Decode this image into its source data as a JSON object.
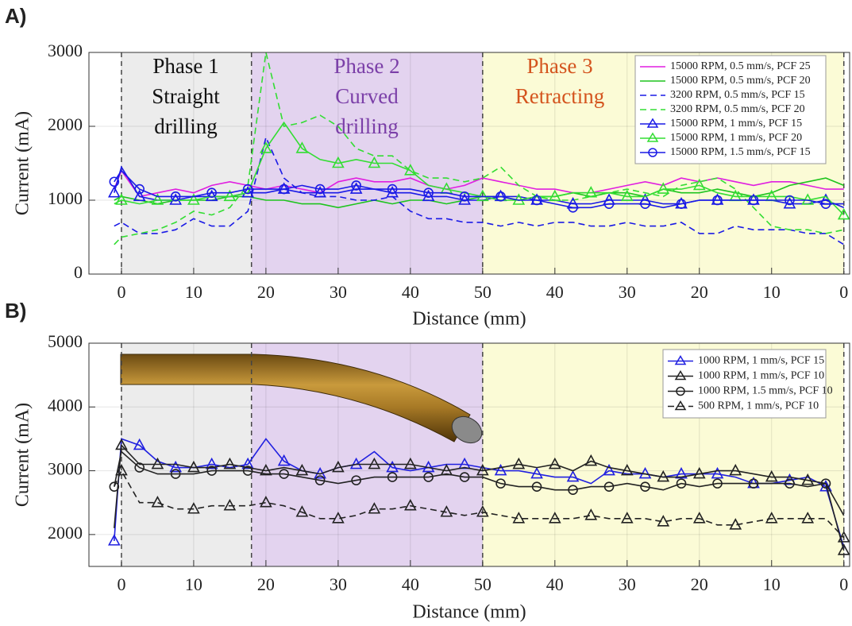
{
  "chart_data": [
    {
      "type": "line",
      "panel_label": "A)",
      "xlabel": "Distance (mm)",
      "ylabel": "Current (mA)",
      "xlim": [
        -4.5,
        100.8
      ],
      "ylim": [
        0,
        3000
      ],
      "xticks": [
        0,
        10,
        20,
        30,
        40,
        50,
        {
          "value": 60,
          "label": "40"
        },
        {
          "value": 70,
          "label": "30"
        },
        {
          "value": 80,
          "label": "20"
        },
        {
          "value": 90,
          "label": "10"
        },
        {
          "value": 100,
          "label": "0"
        }
      ],
      "yticks": [
        0,
        1000,
        2000,
        3000
      ],
      "grid": true,
      "legend": "upper right",
      "vlines": [
        0,
        18,
        50,
        100
      ],
      "regions": [
        {
          "start": 0,
          "end": 18,
          "color": "#ececec",
          "label": [
            "Phase 1",
            "Straight",
            "drilling"
          ],
          "label_color": "#111111"
        },
        {
          "start": 18,
          "end": 50,
          "color": "#e3d3ef",
          "label": [
            "Phase 2",
            "Curved",
            "drilling"
          ],
          "label_color": "#7b3fa8"
        },
        {
          "start": 50,
          "end": 100,
          "color": "#fbfbd6",
          "label": [
            "Phase 3",
            "Retracting"
          ],
          "label_color": "#d4541e"
        }
      ],
      "x": [
        -1,
        0,
        2.5,
        5,
        7.5,
        10,
        12.5,
        15,
        17.5,
        20,
        22.5,
        25,
        27.5,
        30,
        32.5,
        35,
        37.5,
        40,
        42.5,
        45,
        47.5,
        50,
        52.5,
        55,
        57.5,
        60,
        62.5,
        65,
        67.5,
        70,
        72.5,
        75,
        77.5,
        80,
        82.5,
        85,
        87.5,
        90,
        92.5,
        95,
        97.5,
        100
      ],
      "series": [
        {
          "name": "15000 RPM, 0.5 mm/s, PCF 25",
          "color": "#e01ee0",
          "linestyle": "solid",
          "marker": "none",
          "values": [
            1150,
            1400,
            1050,
            1100,
            1150,
            1100,
            1200,
            1250,
            1200,
            1150,
            1200,
            1150,
            1100,
            1250,
            1300,
            1250,
            1250,
            1300,
            1200,
            1150,
            1200,
            1300,
            1250,
            1200,
            1150,
            1150,
            1100,
            1100,
            1150,
            1200,
            1250,
            1200,
            1300,
            1250,
            1300,
            1250,
            1200,
            1250,
            1250,
            1200,
            1150,
            1150
          ]
        },
        {
          "name": "15000 RPM, 0.5 mm/s, PCF 20",
          "color": "#1ec41e",
          "linestyle": "solid",
          "marker": "none",
          "values": [
            1000,
            1050,
            1000,
            950,
            1000,
            1000,
            1000,
            1050,
            1050,
            1000,
            1000,
            950,
            950,
            900,
            950,
            1000,
            950,
            1000,
            1000,
            950,
            1000,
            1050,
            1050,
            1000,
            1050,
            1050,
            1100,
            1050,
            1100,
            1100,
            1050,
            1150,
            1100,
            1100,
            1150,
            1100,
            1050,
            1100,
            1200,
            1250,
            1300,
            1200
          ]
        },
        {
          "name": "3200 RPM, 0.5 mm/s, PCF 15",
          "color": "#1a1ae6",
          "linestyle": "dashed",
          "marker": "none",
          "values": [
            650,
            700,
            550,
            550,
            600,
            750,
            650,
            650,
            850,
            1850,
            1300,
            1100,
            1050,
            1050,
            1000,
            1000,
            1050,
            850,
            750,
            750,
            700,
            700,
            650,
            700,
            650,
            700,
            700,
            650,
            650,
            700,
            650,
            650,
            700,
            550,
            550,
            650,
            600,
            600,
            600,
            550,
            550,
            400
          ]
        },
        {
          "name": "3200 RPM, 0.5 mm/s, PCF 20",
          "color": "#33dd33",
          "linestyle": "dashed",
          "marker": "none",
          "values": [
            400,
            500,
            550,
            600,
            700,
            850,
            800,
            900,
            1200,
            3000,
            2000,
            2050,
            2150,
            2000,
            1700,
            1600,
            1600,
            1400,
            1300,
            1300,
            1250,
            1300,
            1450,
            1200,
            1050,
            1000,
            1000,
            1050,
            1100,
            1150,
            1100,
            1050,
            1200,
            1250,
            1300,
            1150,
            900,
            650,
            600,
            600,
            550,
            600
          ]
        },
        {
          "name": "15000 RPM, 1 mm/s, PCF 15",
          "color": "#1a1ae6",
          "linestyle": "solid",
          "marker": "^",
          "values": [
            1100,
            1450,
            1050,
            1000,
            1000,
            1050,
            1050,
            1050,
            1100,
            1100,
            1150,
            1100,
            1100,
            1100,
            1150,
            1150,
            1100,
            1100,
            1050,
            1050,
            1000,
            1000,
            1050,
            1050,
            1000,
            1000,
            950,
            950,
            1000,
            1000,
            1000,
            950,
            950,
            1000,
            1000,
            1000,
            1000,
            1000,
            950,
            950,
            1000,
            900
          ]
        },
        {
          "name": "15000 RPM, 1 mm/s, PCF 20",
          "color": "#33dd33",
          "linestyle": "solid",
          "marker": "^",
          "values": [
            950,
            1000,
            950,
            1000,
            1000,
            1000,
            1050,
            1050,
            1100,
            1700,
            2050,
            1700,
            1550,
            1500,
            1550,
            1500,
            1500,
            1400,
            1200,
            1150,
            1100,
            1050,
            1000,
            1000,
            1050,
            1050,
            1100,
            1100,
            1100,
            1050,
            1050,
            1150,
            1150,
            1200,
            1100,
            1050,
            1050,
            1050,
            1050,
            1000,
            1050,
            800
          ]
        },
        {
          "name": "15000 RPM, 1.5 mm/s, PCF 15",
          "color": "#1a1ae6",
          "linestyle": "solid",
          "marker": "o",
          "values": [
            1250,
            1400,
            1150,
            1050,
            1050,
            1050,
            1100,
            1100,
            1150,
            1150,
            1150,
            1200,
            1150,
            1150,
            1200,
            1150,
            1150,
            1150,
            1100,
            1100,
            1050,
            1050,
            1050,
            1000,
            1000,
            950,
            900,
            900,
            950,
            950,
            950,
            900,
            950,
            1000,
            1000,
            1000,
            1000,
            1000,
            1000,
            1000,
            950,
            950
          ]
        }
      ]
    },
    {
      "type": "line",
      "panel_label": "B)",
      "xlabel": "Distance (mm)",
      "ylabel": "Current (mA)",
      "xlim": [
        -4.5,
        100.8
      ],
      "ylim": [
        1500,
        5000
      ],
      "xticks": [
        0,
        10,
        20,
        30,
        40,
        50,
        {
          "value": 60,
          "label": "40"
        },
        {
          "value": 70,
          "label": "30"
        },
        {
          "value": 80,
          "label": "20"
        },
        {
          "value": 90,
          "label": "10"
        },
        {
          "value": 100,
          "label": "0"
        }
      ],
      "yticks": [
        2000,
        3000,
        4000,
        5000
      ],
      "grid": true,
      "legend": "upper right",
      "vlines": [
        0,
        18,
        50,
        100
      ],
      "regions": [
        {
          "start": 0,
          "end": 18,
          "color": "#ececec"
        },
        {
          "start": 18,
          "end": 50,
          "color": "#e3d3ef"
        },
        {
          "start": 50,
          "end": 100,
          "color": "#fbfbd6"
        }
      ],
      "x": [
        -1,
        0,
        2.5,
        5,
        7.5,
        10,
        12.5,
        15,
        17.5,
        20,
        22.5,
        25,
        27.5,
        30,
        32.5,
        35,
        37.5,
        40,
        42.5,
        45,
        47.5,
        50,
        52.5,
        55,
        57.5,
        60,
        62.5,
        65,
        67.5,
        70,
        72.5,
        75,
        77.5,
        80,
        82.5,
        85,
        87.5,
        90,
        92.5,
        95,
        97.5,
        100
      ],
      "series": [
        {
          "name": "1000 RPM, 1 mm/s, PCF 15",
          "color": "#2020e0",
          "linestyle": "solid",
          "marker": "^",
          "values": [
            1900,
            3500,
            3400,
            3150,
            3050,
            3050,
            3100,
            3050,
            3100,
            3500,
            3150,
            3000,
            2950,
            3050,
            3100,
            3300,
            3050,
            3000,
            3050,
            3100,
            3100,
            3050,
            3000,
            3000,
            2950,
            2900,
            2900,
            2800,
            3000,
            2950,
            2950,
            2900,
            2950,
            2950,
            2950,
            2900,
            2800,
            2800,
            2850,
            2900,
            2750,
            1800
          ]
        },
        {
          "name": "1000 RPM, 1 mm/s, PCF 10",
          "color": "#222222",
          "linestyle": "solid",
          "marker": "^",
          "values": [
            2100,
            3400,
            3100,
            3100,
            3100,
            3050,
            3050,
            3100,
            3050,
            3000,
            3050,
            3000,
            2950,
            3050,
            3100,
            3100,
            3100,
            3100,
            3050,
            3000,
            3050,
            3000,
            3050,
            3100,
            3050,
            3100,
            3000,
            3150,
            3050,
            3000,
            2950,
            2900,
            2900,
            2950,
            3000,
            3000,
            2950,
            2900,
            2900,
            2850,
            2800,
            1750
          ]
        },
        {
          "name": "1000 RPM, 1.5 mm/s, PCF 10",
          "color": "#222222",
          "linestyle": "solid",
          "marker": "o",
          "values": [
            2750,
            3300,
            3050,
            2950,
            2950,
            2950,
            3000,
            3000,
            3000,
            2950,
            2950,
            2900,
            2850,
            2800,
            2850,
            2900,
            2900,
            2900,
            2900,
            2950,
            2900,
            2900,
            2800,
            2750,
            2750,
            2700,
            2700,
            2750,
            2750,
            2800,
            2750,
            2700,
            2800,
            2750,
            2800,
            2800,
            2800,
            2800,
            2800,
            2750,
            2800,
            2300
          ]
        },
        {
          "name": "500 RPM, 1 mm/s, PCF 10",
          "color": "#222222",
          "linestyle": "dashed",
          "marker": "^",
          "values": [
            2750,
            3000,
            2500,
            2500,
            2400,
            2400,
            2450,
            2450,
            2450,
            2500,
            2450,
            2350,
            2250,
            2250,
            2300,
            2400,
            2400,
            2450,
            2400,
            2350,
            2300,
            2350,
            2300,
            2250,
            2250,
            2250,
            2250,
            2300,
            2250,
            2250,
            2250,
            2200,
            2250,
            2250,
            2150,
            2150,
            2200,
            2250,
            2250,
            2250,
            2250,
            1950
          ]
        }
      ]
    }
  ]
}
